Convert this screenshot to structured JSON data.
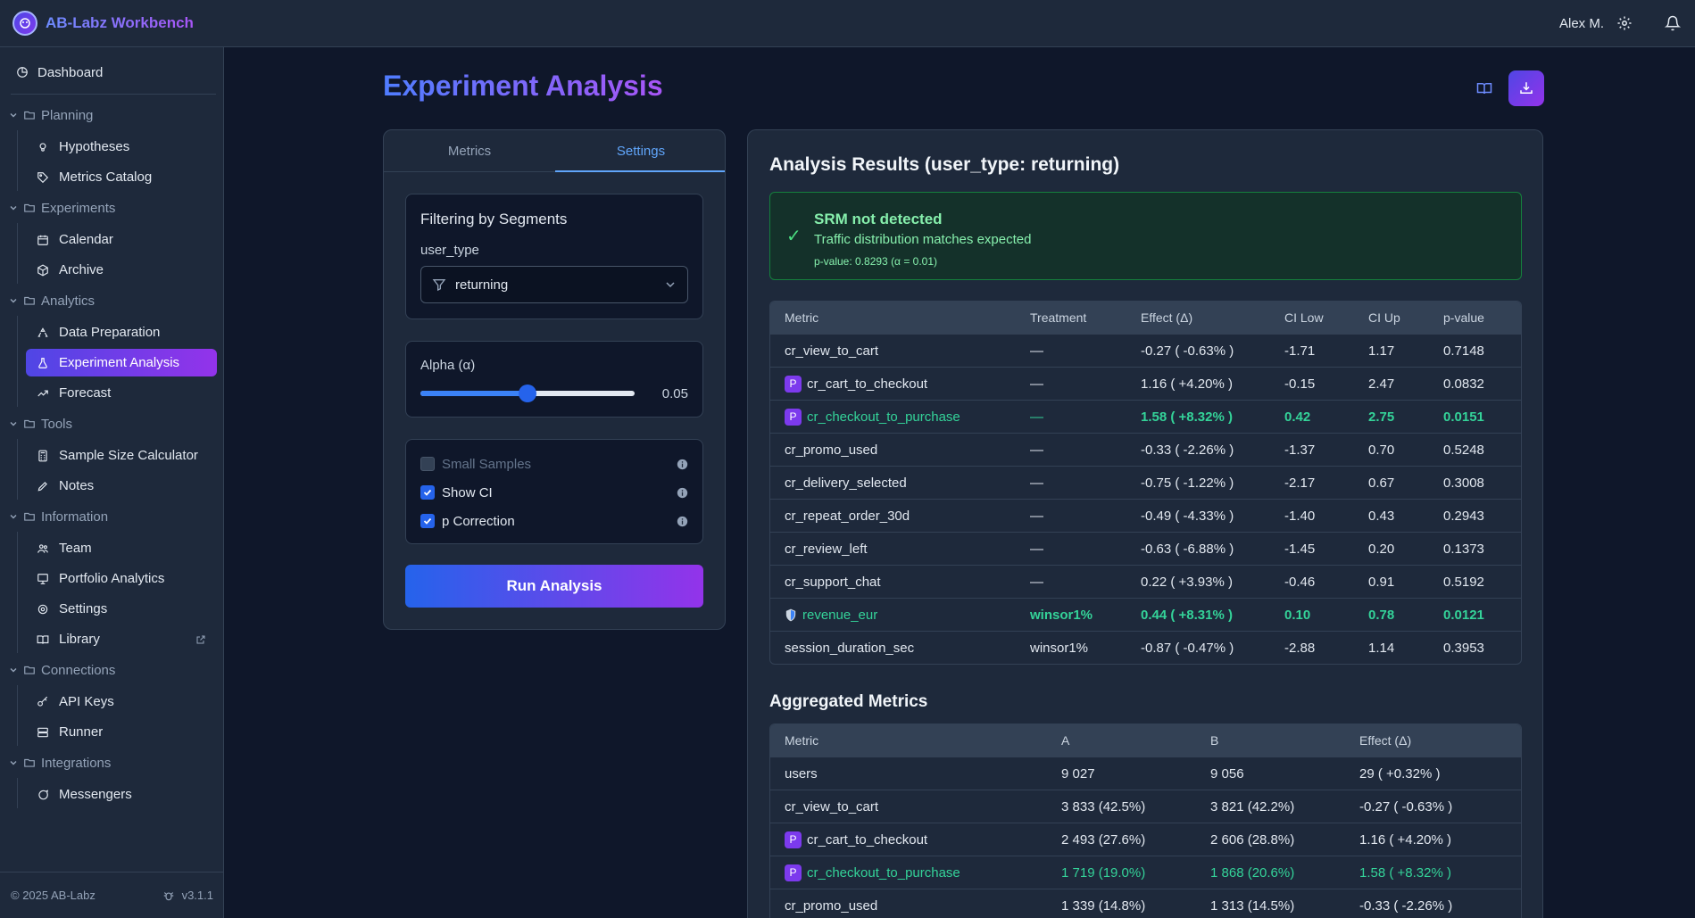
{
  "app": {
    "title": "AB-Labz Workbench",
    "user": "Alex M."
  },
  "sidebar": {
    "dashboard": "Dashboard",
    "groups": [
      {
        "label": "Planning",
        "items": [
          "Hypotheses",
          "Metrics Catalog"
        ]
      },
      {
        "label": "Experiments",
        "items": [
          "Calendar",
          "Archive"
        ]
      },
      {
        "label": "Analytics",
        "items": [
          "Data Preparation",
          "Experiment Analysis",
          "Forecast"
        ]
      },
      {
        "label": "Tools",
        "items": [
          "Sample Size Calculator",
          "Notes"
        ]
      },
      {
        "label": "Information",
        "items": [
          "Team",
          "Portfolio Analytics",
          "Settings",
          "Library"
        ]
      },
      {
        "label": "Connections",
        "items": [
          "API Keys",
          "Runner"
        ]
      },
      {
        "label": "Integrations",
        "items": [
          "Messengers"
        ]
      }
    ],
    "active_item": "Experiment Analysis",
    "footer": {
      "copyright": "© 2025 AB-Labz",
      "version": "v3.1.1"
    }
  },
  "page": {
    "title": "Experiment Analysis"
  },
  "left_panel": {
    "tabs": [
      "Metrics",
      "Settings"
    ],
    "active_tab": "Settings",
    "filter": {
      "title": "Filtering by Segments",
      "field": "user_type",
      "value": "returning"
    },
    "alpha": {
      "label": "Alpha (α)",
      "value": "0.05",
      "fraction": 0.5
    },
    "options": [
      {
        "label": "Small Samples",
        "checked": false,
        "disabled": true
      },
      {
        "label": "Show CI",
        "checked": true,
        "disabled": false
      },
      {
        "label": "p Correction",
        "checked": true,
        "disabled": false
      }
    ],
    "run_button": "Run Analysis"
  },
  "results": {
    "title": "Analysis Results (user_type: returning)",
    "srm": {
      "title": "SRM not detected",
      "description": "Traffic distribution matches expected",
      "pvalue": "p-value: 0.8293 (α = 0.01)",
      "check": "✓"
    },
    "columns": [
      "Metric",
      "Treatment",
      "Effect (Δ)",
      "CI Low",
      "CI Up",
      "p-value"
    ],
    "rows": [
      {
        "metric": "cr_view_to_cart",
        "badge": "",
        "treatment": "—",
        "effect": "-0.27 ( -0.63% )",
        "ci_low": "-1.71",
        "ci_up": "1.17",
        "p": "0.7148",
        "significant": false
      },
      {
        "metric": "cr_cart_to_checkout",
        "badge": "P",
        "treatment": "—",
        "effect": "1.16 ( +4.20% )",
        "ci_low": "-0.15",
        "ci_up": "2.47",
        "p": "0.0832",
        "significant": false
      },
      {
        "metric": "cr_checkout_to_purchase",
        "badge": "P",
        "treatment": "—",
        "effect": "1.58 ( +8.32% )",
        "ci_low": "0.42",
        "ci_up": "2.75",
        "p": "0.0151",
        "significant": true
      },
      {
        "metric": "cr_promo_used",
        "badge": "",
        "treatment": "—",
        "effect": "-0.33 ( -2.26% )",
        "ci_low": "-1.37",
        "ci_up": "0.70",
        "p": "0.5248",
        "significant": false
      },
      {
        "metric": "cr_delivery_selected",
        "badge": "",
        "treatment": "—",
        "effect": "-0.75 ( -1.22% )",
        "ci_low": "-2.17",
        "ci_up": "0.67",
        "p": "0.3008",
        "significant": false
      },
      {
        "metric": "cr_repeat_order_30d",
        "badge": "",
        "treatment": "—",
        "effect": "-0.49 ( -4.33% )",
        "ci_low": "-1.40",
        "ci_up": "0.43",
        "p": "0.2943",
        "significant": false
      },
      {
        "metric": "cr_review_left",
        "badge": "",
        "treatment": "—",
        "effect": "-0.63 ( -6.88% )",
        "ci_low": "-1.45",
        "ci_up": "0.20",
        "p": "0.1373",
        "significant": false
      },
      {
        "metric": "cr_support_chat",
        "badge": "",
        "treatment": "—",
        "effect": "0.22 ( +3.93% )",
        "ci_low": "-0.46",
        "ci_up": "0.91",
        "p": "0.5192",
        "significant": false
      },
      {
        "metric": "revenue_eur",
        "badge": "shield",
        "treatment": "winsor1%",
        "effect": "0.44 ( +8.31% )",
        "ci_low": "0.10",
        "ci_up": "0.78",
        "p": "0.0121",
        "significant": true
      },
      {
        "metric": "session_duration_sec",
        "badge": "",
        "treatment": "winsor1%",
        "effect": "-0.87 ( -0.47% )",
        "ci_low": "-2.88",
        "ci_up": "1.14",
        "p": "0.3953",
        "significant": false
      }
    ]
  },
  "aggregated": {
    "title": "Aggregated Metrics",
    "columns": [
      "Metric",
      "A",
      "B",
      "Effect (Δ)"
    ],
    "rows": [
      {
        "metric": "users",
        "badge": "",
        "a": "9 027",
        "b": "9 056",
        "effect": "29 ( +0.32% )",
        "significant": false
      },
      {
        "metric": "cr_view_to_cart",
        "badge": "",
        "a": "3 833 (42.5%)",
        "b": "3 821 (42.2%)",
        "effect": "-0.27 ( -0.63% )",
        "significant": false
      },
      {
        "metric": "cr_cart_to_checkout",
        "badge": "P",
        "a": "2 493 (27.6%)",
        "b": "2 606 (28.8%)",
        "effect": "1.16 ( +4.20% )",
        "significant": false
      },
      {
        "metric": "cr_checkout_to_purchase",
        "badge": "P",
        "a": "1 719 (19.0%)",
        "b": "1 868 (20.6%)",
        "effect": "1.58 ( +8.32% )",
        "significant": true
      },
      {
        "metric": "cr_promo_used",
        "badge": "",
        "a": "1 339 (14.8%)",
        "b": "1 313 (14.5%)",
        "effect": "-0.33 ( -2.26% )",
        "significant": false
      }
    ]
  },
  "colors": {
    "accent": "#4f46e5",
    "purple": "#9333ea",
    "success": "#34d399",
    "bg": "#0f172a",
    "panel": "#1e293b"
  }
}
